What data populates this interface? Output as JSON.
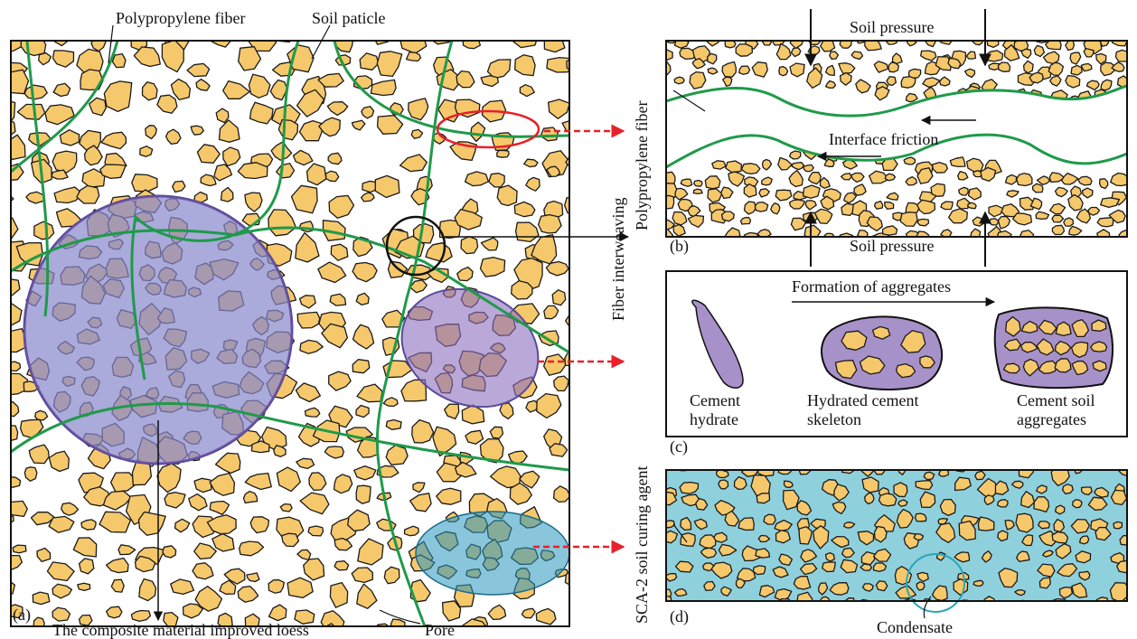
{
  "panel_a": {
    "tag": "(a)",
    "fiber": "Polypropylene fiber",
    "particle": "Soil paticle",
    "composite": "The composite material improved loess",
    "pore": "Pore"
  },
  "side_label": "Fiber interweaving",
  "panel_b": {
    "tag": "(b)",
    "top": "Soil pressure",
    "bottom": "Soil pressure",
    "fiber": "Polypropylene fiber",
    "friction": "Interface friction"
  },
  "panel_c": {
    "tag": "(c)",
    "title": "Formation of aggregates",
    "stages": [
      {
        "lines": [
          "Cement",
          "hydrate"
        ]
      },
      {
        "lines": [
          "Hydrated cement",
          "skeleton"
        ]
      },
      {
        "lines": [
          "Cement soil",
          "aggregates"
        ]
      }
    ]
  },
  "panel_d": {
    "tag": "(d)",
    "agent": "SCA-2 soil curing agent",
    "condensate": "Condensate"
  }
}
